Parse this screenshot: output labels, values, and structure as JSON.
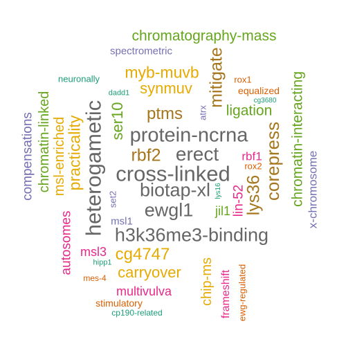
{
  "words": {
    "chromatography_mass": "chromatography-mass",
    "spectrometric": "spectrometric",
    "myb_muvb": "myb-muvb",
    "mitigate": "mitigate",
    "rox1": "rox1",
    "neuronally": "neuronally",
    "equalized": "equalized",
    "synmuv": "synmuv",
    "dadd1": "dadd1",
    "cg3680": "cg3680",
    "chromatin_interacting": "chromatin-interacting",
    "ligation": "ligation",
    "ser10": "ser10",
    "ptms": "ptms",
    "atrx": "atrx",
    "compensations": "compensations",
    "chromatin_linked": "chromatin-linked",
    "msl_enriched": "msl-enriched",
    "practicality": "practicality",
    "heterogametic": "heterogametic",
    "protein_ncrna": "protein-ncrna",
    "corepress": "corepress",
    "rbf2": "rbf2",
    "erect": "erect",
    "rbf1": "rbf1",
    "x_chromosome": "x-chromosome",
    "rox2": "rox2",
    "cross_linked": "cross-linked",
    "lys36": "lys36",
    "lys16": "lys16",
    "lin_52": "lin-52",
    "biotap_xl": "biotap-xl",
    "set2": "set2",
    "jil1": "jil1",
    "ewgl1": "ewgl1",
    "msl1": "msl1",
    "autosomes": "autosomes",
    "h3k36me3_binding": "h3k36me3-binding",
    "msl3": "msl3",
    "cg4747": "cg4747",
    "hipp1": "hipp1",
    "chip_ms": "chip-ms",
    "frameshift": "frameshift",
    "carryover": "carryover",
    "mes_4": "mes-4",
    "ewg_regulated": "ewg-regulated",
    "multivulva": "multivulva",
    "stimulatory": "stimulatory",
    "cp190_related": "cp190-related"
  }
}
